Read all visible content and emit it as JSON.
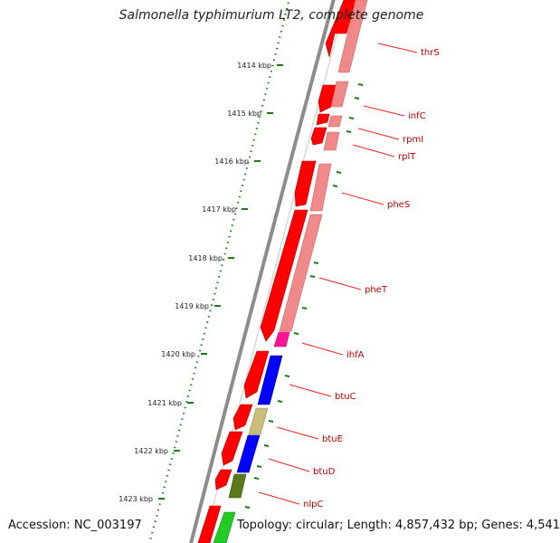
{
  "title": "Salmonella typhimurium LT2, complete genome",
  "accession": "Accession: NC_003197",
  "topology": "Topology: circular; Length: 4,857,432 bp; Genes: 4,541",
  "ticks": [
    {
      "label": "1414 kbp"
    },
    {
      "label": "1415 kbp"
    },
    {
      "label": "1416 kbp"
    },
    {
      "label": "1417 kbp"
    },
    {
      "label": "1418 kbp"
    },
    {
      "label": "1419 kbp"
    },
    {
      "label": "1420 kbp"
    },
    {
      "label": "1421 kbp"
    },
    {
      "label": "1422 kbp"
    },
    {
      "label": "1423 kbp"
    }
  ],
  "genes": [
    {
      "name": "thrS",
      "color": "#ff0000"
    },
    {
      "name": "infC",
      "color": "#ff0000"
    },
    {
      "name": "rpmI",
      "color": "#ff0000"
    },
    {
      "name": "rplT",
      "color": "#ff0000"
    },
    {
      "name": "pheS",
      "color": "#ff0000"
    },
    {
      "name": "pheT",
      "color": "#ff0000"
    },
    {
      "name": "ihfA",
      "color": "#ff1493"
    },
    {
      "name": "btuC",
      "color": "#0000ff"
    },
    {
      "name": "btuE",
      "color": "#c8bd7a"
    },
    {
      "name": "btuD",
      "color": "#0000ff"
    },
    {
      "name": "nlpC",
      "color": "#5a7a1a"
    }
  ],
  "colors": {
    "backbone": "#808080",
    "cds": "#ff0000",
    "cds_light": "#f08a8a",
    "tick": "#1a7a1a",
    "label": "#c00000",
    "next": "#22cc22"
  }
}
